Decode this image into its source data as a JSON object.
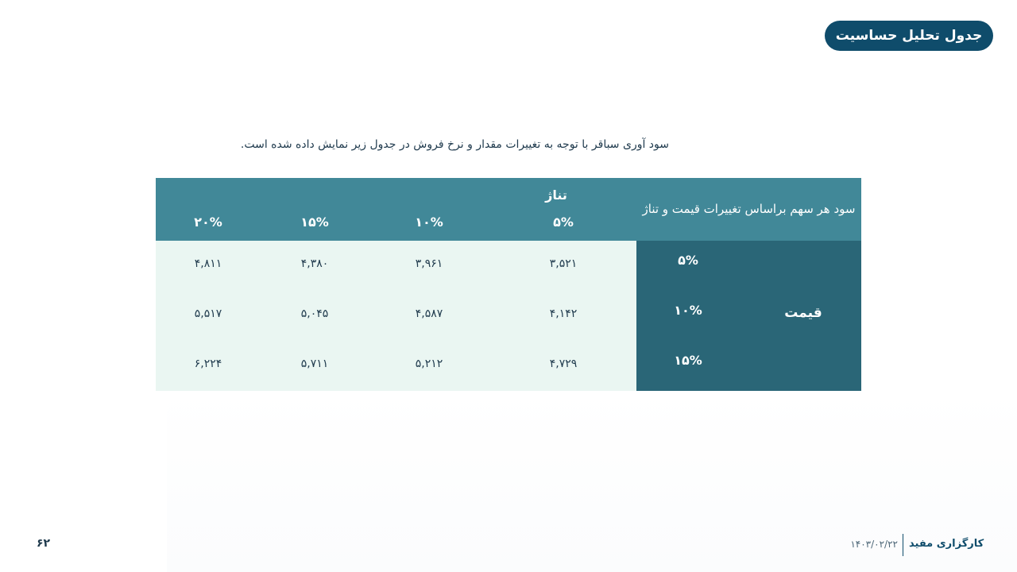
{
  "header": {
    "title": "جدول تحلیل حساسیت"
  },
  "intro": "سود آوری سباقر با توجه به تغییرات مقدار و نرخ فروش در جدول زیر نمایش داده شده است.",
  "table": {
    "title": "سود هر سهم براساس تغییرات قیمت و تناژ",
    "column_group": "تناژ",
    "row_group": "قیمت",
    "columns": [
      "۵%",
      "۱۰%",
      "۱۵%",
      "۲۰%"
    ],
    "rows": [
      {
        "label": "۵%",
        "values": [
          "۳,۵۲۱",
          "۳,۹۶۱",
          "۴,۳۸۰",
          "۴,۸۱۱"
        ]
      },
      {
        "label": "۱۰%",
        "values": [
          "۴,۱۴۲",
          "۴,۵۸۷",
          "۵,۰۴۵",
          "۵,۵۱۷"
        ]
      },
      {
        "label": "۱۵%",
        "values": [
          "۴,۷۲۹",
          "۵,۲۱۲",
          "۵,۷۱۱",
          "۶,۲۲۴"
        ]
      }
    ]
  },
  "footer": {
    "brand": "کارگزاری مفید",
    "date": "۱۴۰۳/۰۲/۲۲",
    "page_number": "۶۲"
  },
  "colors": {
    "title_pill": "#0f4c6b",
    "header_teal": "#418898",
    "side_dark": "#2a6677",
    "cell_bg": "#eaf6f2"
  }
}
